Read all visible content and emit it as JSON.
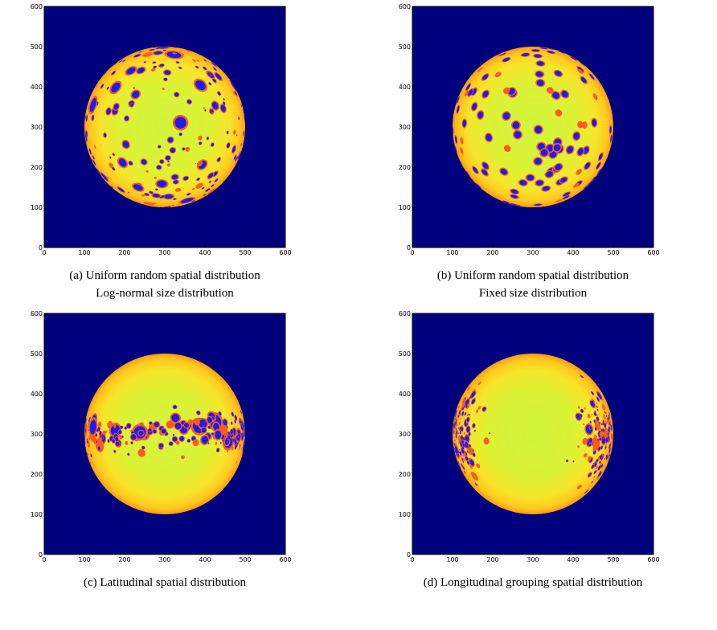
{
  "chart_data": [
    {
      "type": "image",
      "caption": [
        "(a) Uniform random spatial distribution",
        "Log-normal size distribution"
      ],
      "xlim": [
        0,
        600
      ],
      "ylim": [
        0,
        600
      ],
      "xticks": [
        0,
        100,
        200,
        300,
        400,
        500,
        600
      ],
      "yticks": [
        0,
        100,
        200,
        300,
        400,
        500,
        600
      ]
    },
    {
      "type": "image",
      "caption": [
        "(b) Uniform random spatial distribution",
        "Fixed size distribution"
      ],
      "xlim": [
        0,
        600
      ],
      "ylim": [
        0,
        600
      ],
      "xticks": [
        0,
        100,
        200,
        300,
        400,
        500,
        600
      ],
      "yticks": [
        0,
        100,
        200,
        300,
        400,
        500,
        600
      ]
    },
    {
      "type": "image",
      "caption": [
        "(c) Latitudinal spatial distribution"
      ],
      "xlim": [
        0,
        600
      ],
      "ylim": [
        0,
        600
      ],
      "xticks": [
        0,
        100,
        200,
        300,
        400,
        500,
        600
      ],
      "yticks": [
        0,
        100,
        200,
        300,
        400,
        500,
        600
      ]
    },
    {
      "type": "image",
      "caption": [
        "(d) Longitudinal grouping spatial distribution"
      ],
      "xlim": [
        0,
        600
      ],
      "ylim": [
        0,
        600
      ],
      "xticks": [
        0,
        100,
        200,
        300,
        400,
        500,
        600
      ],
      "yticks": [
        0,
        100,
        200,
        300,
        400,
        500,
        600
      ]
    }
  ]
}
